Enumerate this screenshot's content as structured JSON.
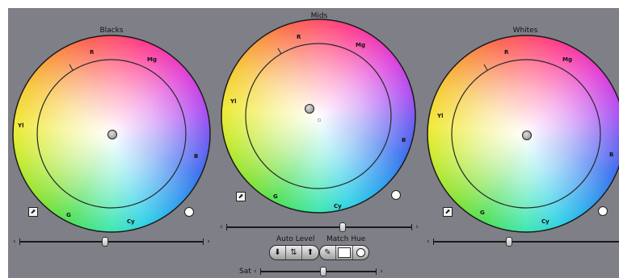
{
  "wheels": {
    "blacks": {
      "title": "Blacks",
      "hues": {
        "r": "R",
        "mg": "Mg",
        "yl": "Yl",
        "b": "B",
        "g": "G",
        "cy": "Cy"
      }
    },
    "mids": {
      "title": "Mids",
      "hues": {
        "r": "R",
        "mg": "Mg",
        "yl": "Yl",
        "b": "B",
        "g": "G",
        "cy": "Cy"
      }
    },
    "whites": {
      "title": "Whites",
      "hues": {
        "r": "R",
        "mg": "Mg",
        "yl": "Yl",
        "b": "B",
        "g": "G",
        "cy": "Cy"
      }
    }
  },
  "controls": {
    "auto_level_label": "Auto Level",
    "match_hue_label": "Match Hue",
    "sat_label": "Sat",
    "eyedropper_icon": "eyedropper-icon",
    "auto_black_icon": "auto-black-icon",
    "auto_contrast_icon": "auto-contrast-icon",
    "auto_white_icon": "auto-white-icon"
  },
  "colors": {
    "panel_bg": "#7f8087"
  }
}
